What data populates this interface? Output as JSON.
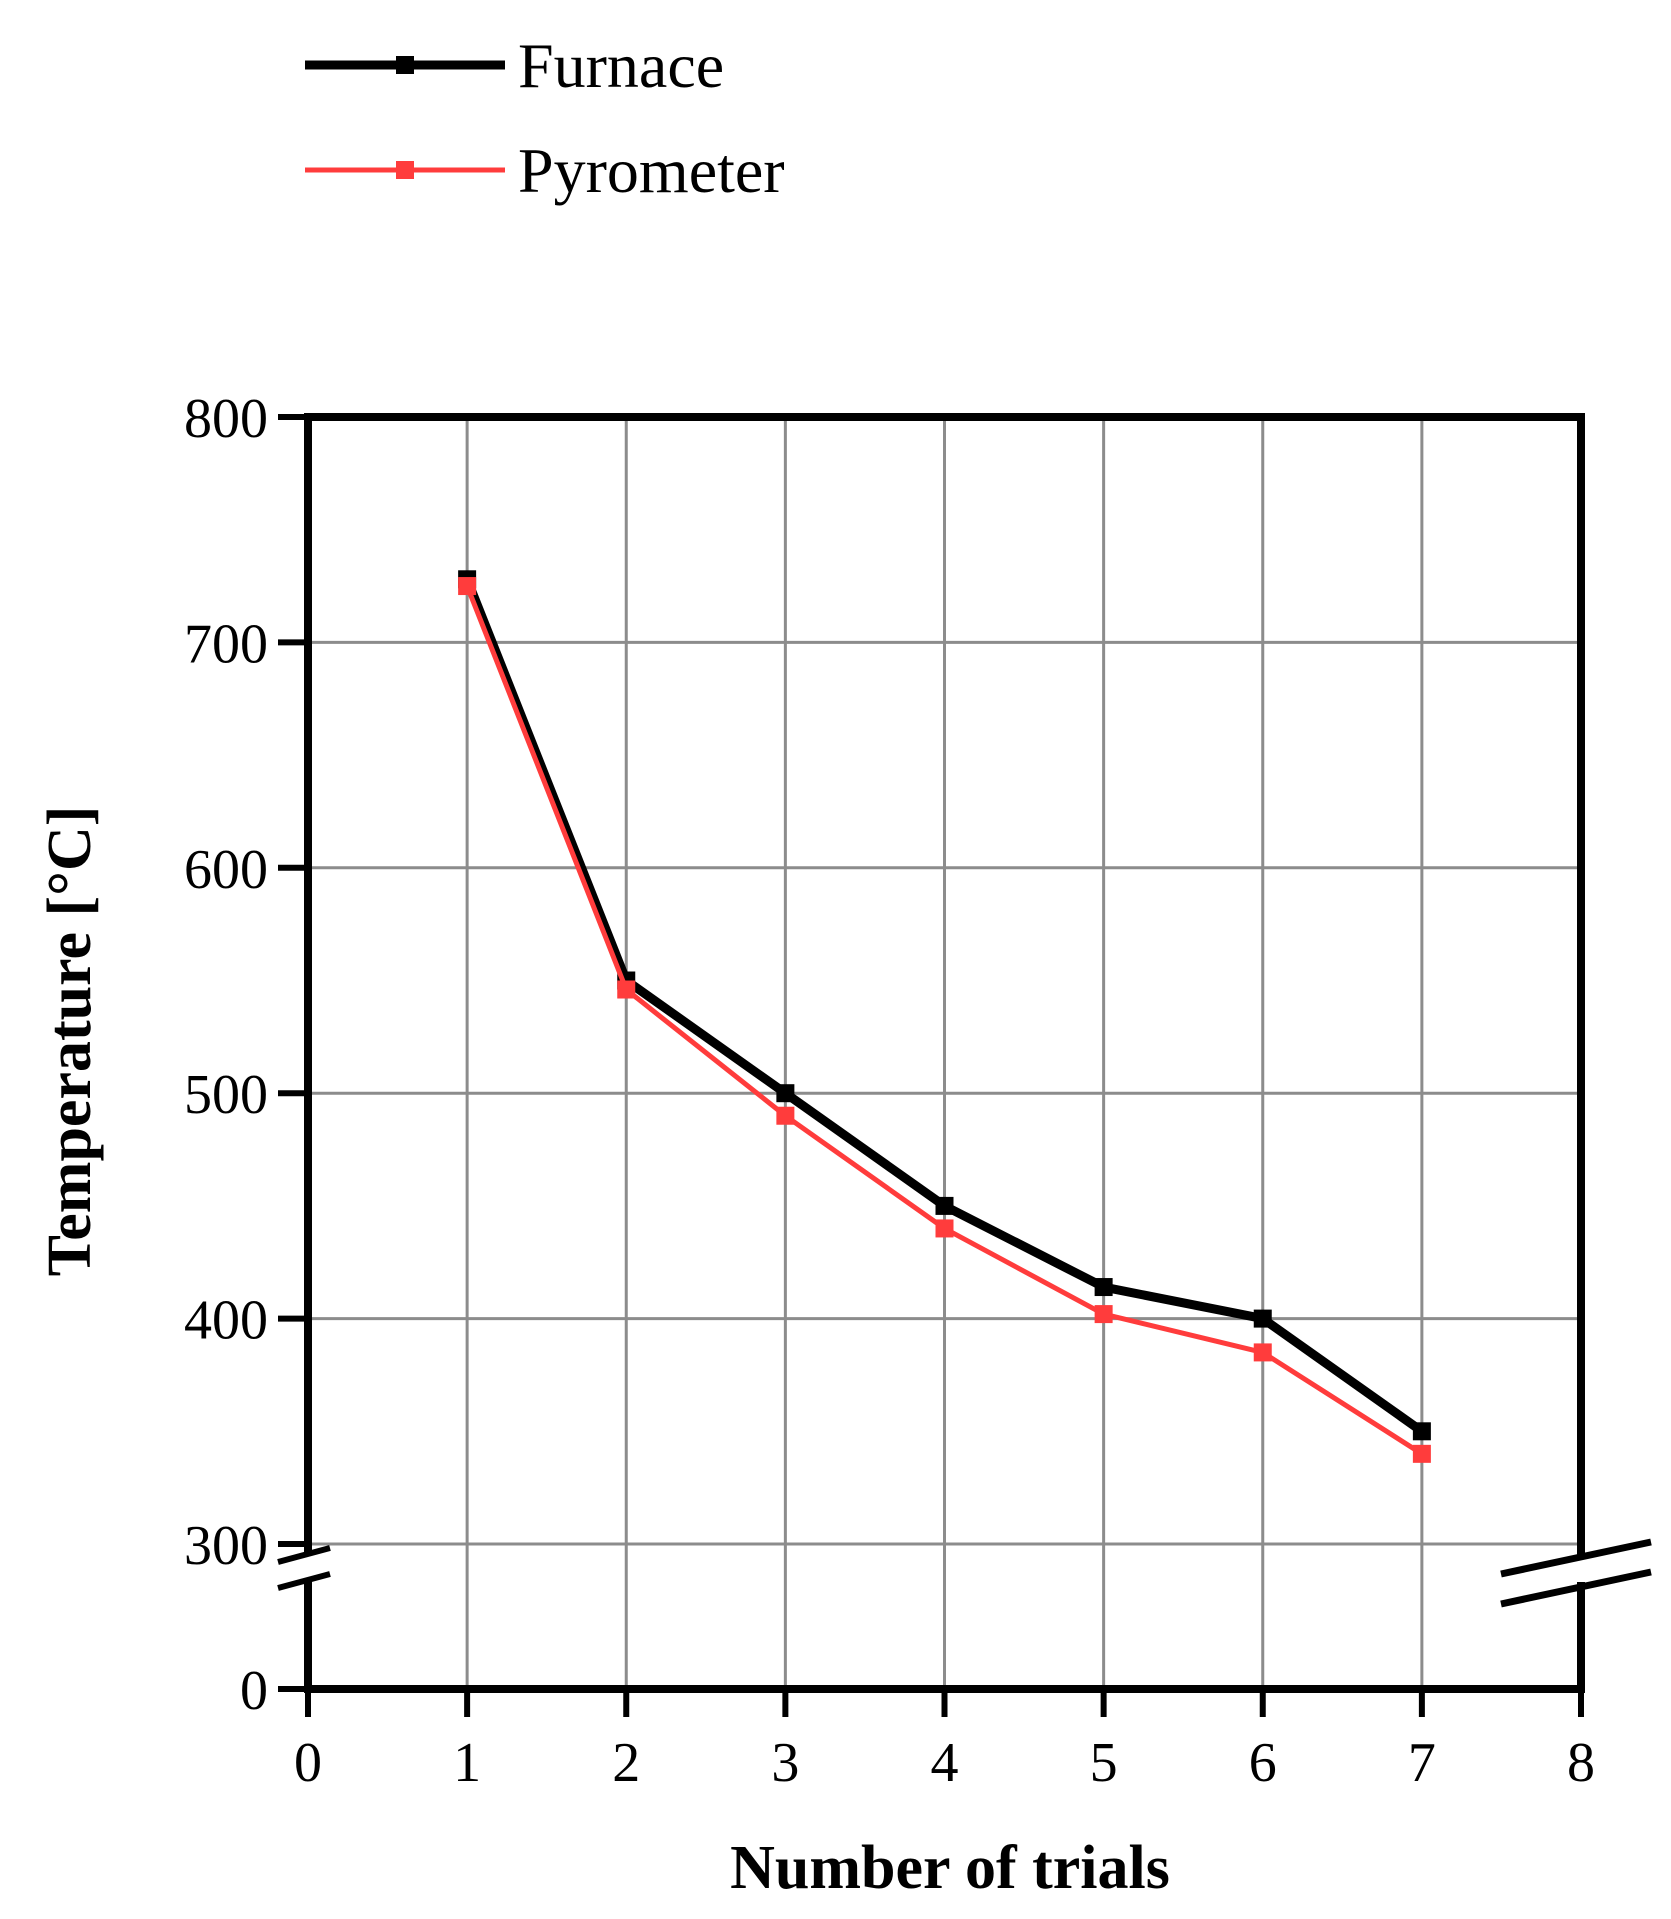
{
  "chart_data": {
    "type": "line",
    "x": [
      1,
      2,
      3,
      4,
      5,
      6,
      7
    ],
    "series": [
      {
        "name": "Furnace",
        "values": [
          728,
          550,
          500,
          450,
          414,
          400,
          350
        ],
        "color": "#000000"
      },
      {
        "name": "Pyrometer",
        "values": [
          725,
          546,
          490,
          440,
          402,
          385,
          340
        ],
        "color": "#ff3c3c"
      }
    ],
    "xlabel": "Number of trials",
    "ylabel": "Temperature [°C]",
    "xlim": [
      0,
      8
    ],
    "ylim": [
      300,
      800
    ],
    "y_axis_break": {
      "below": 300,
      "bottom_tick": 0
    },
    "x_ticks": [
      "0",
      "1",
      "2",
      "3",
      "4",
      "5",
      "6",
      "7",
      "8"
    ],
    "y_ticks": [
      "300",
      "400",
      "500",
      "600",
      "700",
      "800"
    ],
    "y_bottom_tick": "0",
    "grid": true,
    "legend_position": "top-left"
  }
}
